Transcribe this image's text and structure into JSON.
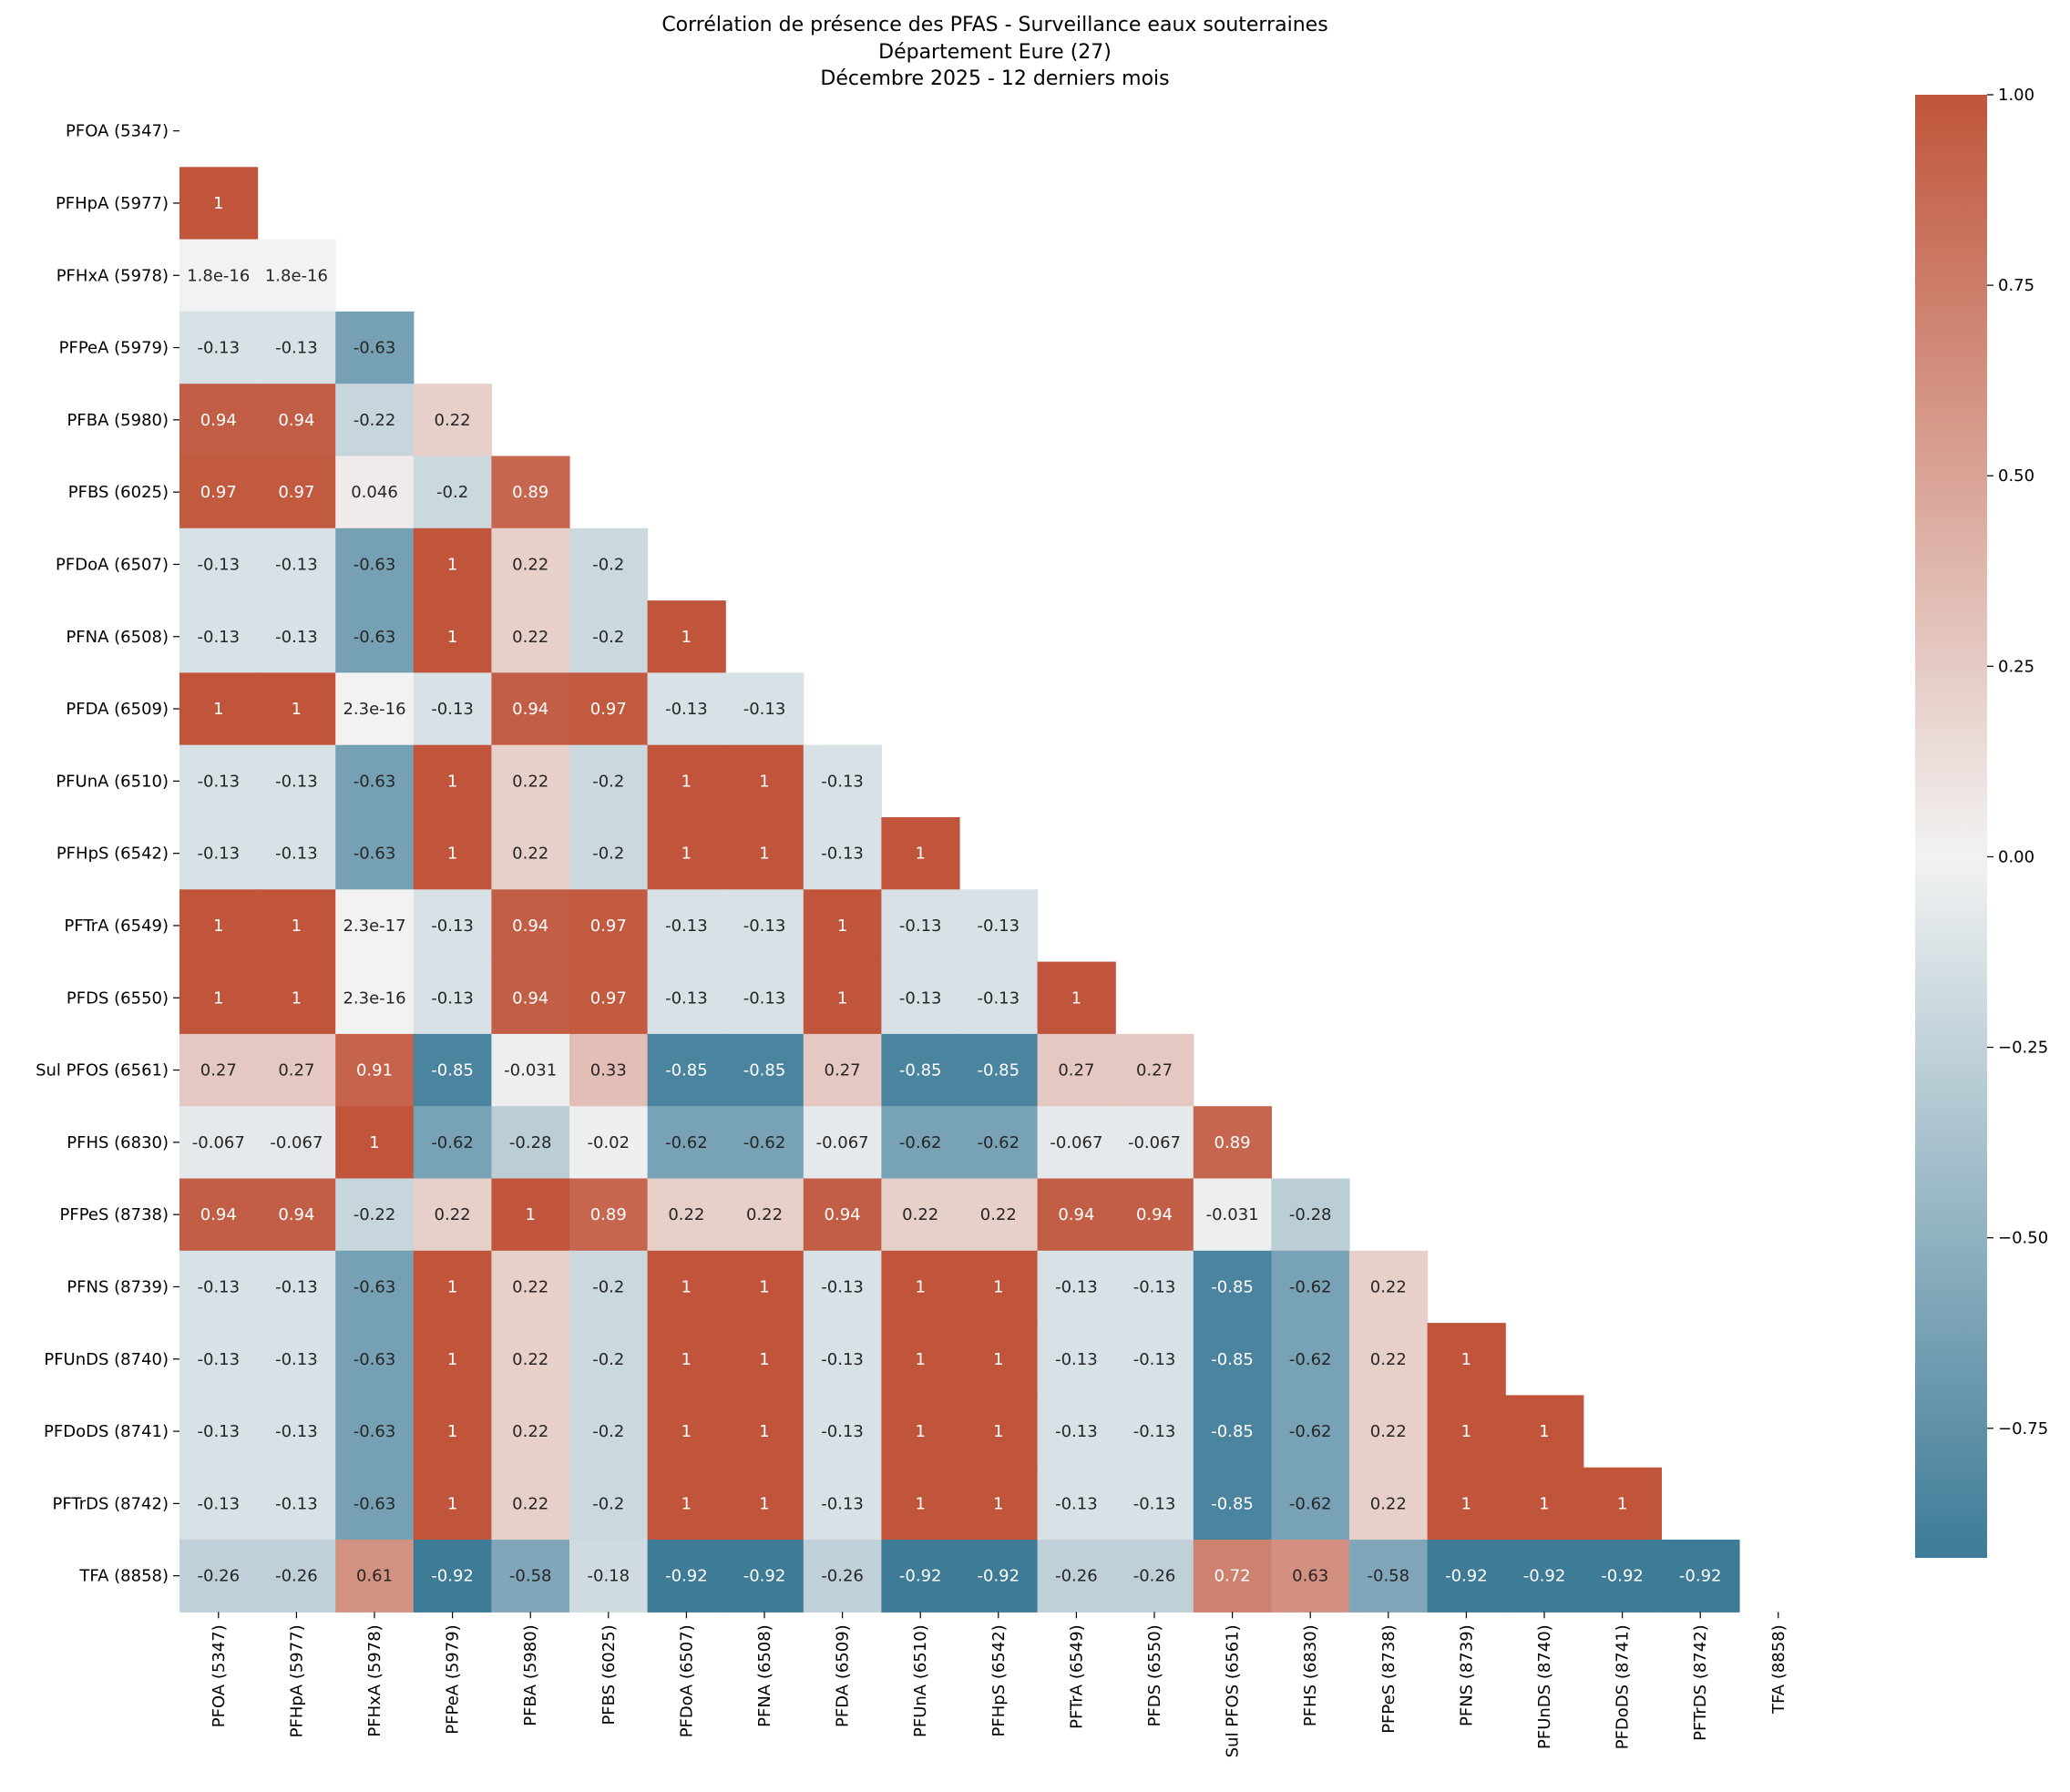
{
  "chart_data": {
    "type": "heatmap",
    "title_lines": [
      "Corrélation de présence des PFAS - Surveillance eaux souterraines",
      "Département Eure (27)",
      "Décembre 2025 - 12 derniers mois"
    ],
    "labels": [
      "PFOA (5347)",
      "PFHpA (5977)",
      "PFHxA (5978)",
      "PFPeA (5979)",
      "PFBA (5980)",
      "PFBS (6025)",
      "PFDoA (6507)",
      "PFNA (6508)",
      "PFDA (6509)",
      "PFUnA (6510)",
      "PFHpS (6542)",
      "PFTrA (6549)",
      "PFDS (6550)",
      "Sul PFOS (6561)",
      "PFHS (6830)",
      "PFPeS (8738)",
      "PFNS (8739)",
      "PFUnDS (8740)",
      "PFDoDS (8741)",
      "PFTrDS (8742)",
      "TFA (8858)"
    ],
    "lower_triangle": [
      [],
      [
        {
          "v": 1,
          "t": "1"
        }
      ],
      [
        {
          "v": 1.8e-16,
          "t": "1.8e-16"
        },
        {
          "v": 1.8e-16,
          "t": "1.8e-16"
        }
      ],
      [
        {
          "v": -0.13,
          "t": "-0.13"
        },
        {
          "v": -0.13,
          "t": "-0.13"
        },
        {
          "v": -0.63,
          "t": "-0.63"
        }
      ],
      [
        {
          "v": 0.94,
          "t": "0.94"
        },
        {
          "v": 0.94,
          "t": "0.94"
        },
        {
          "v": -0.22,
          "t": "-0.22"
        },
        {
          "v": 0.22,
          "t": "0.22"
        }
      ],
      [
        {
          "v": 0.97,
          "t": "0.97"
        },
        {
          "v": 0.97,
          "t": "0.97"
        },
        {
          "v": 0.046,
          "t": "0.046"
        },
        {
          "v": -0.2,
          "t": "-0.2"
        },
        {
          "v": 0.89,
          "t": "0.89"
        }
      ],
      [
        {
          "v": -0.13,
          "t": "-0.13"
        },
        {
          "v": -0.13,
          "t": "-0.13"
        },
        {
          "v": -0.63,
          "t": "-0.63"
        },
        {
          "v": 1,
          "t": "1"
        },
        {
          "v": 0.22,
          "t": "0.22"
        },
        {
          "v": -0.2,
          "t": "-0.2"
        }
      ],
      [
        {
          "v": -0.13,
          "t": "-0.13"
        },
        {
          "v": -0.13,
          "t": "-0.13"
        },
        {
          "v": -0.63,
          "t": "-0.63"
        },
        {
          "v": 1,
          "t": "1"
        },
        {
          "v": 0.22,
          "t": "0.22"
        },
        {
          "v": -0.2,
          "t": "-0.2"
        },
        {
          "v": 1,
          "t": "1"
        }
      ],
      [
        {
          "v": 1,
          "t": "1"
        },
        {
          "v": 1,
          "t": "1"
        },
        {
          "v": 2.3e-16,
          "t": "2.3e-16"
        },
        {
          "v": -0.13,
          "t": "-0.13"
        },
        {
          "v": 0.94,
          "t": "0.94"
        },
        {
          "v": 0.97,
          "t": "0.97"
        },
        {
          "v": -0.13,
          "t": "-0.13"
        },
        {
          "v": -0.13,
          "t": "-0.13"
        }
      ],
      [
        {
          "v": -0.13,
          "t": "-0.13"
        },
        {
          "v": -0.13,
          "t": "-0.13"
        },
        {
          "v": -0.63,
          "t": "-0.63"
        },
        {
          "v": 1,
          "t": "1"
        },
        {
          "v": 0.22,
          "t": "0.22"
        },
        {
          "v": -0.2,
          "t": "-0.2"
        },
        {
          "v": 1,
          "t": "1"
        },
        {
          "v": 1,
          "t": "1"
        },
        {
          "v": -0.13,
          "t": "-0.13"
        }
      ],
      [
        {
          "v": -0.13,
          "t": "-0.13"
        },
        {
          "v": -0.13,
          "t": "-0.13"
        },
        {
          "v": -0.63,
          "t": "-0.63"
        },
        {
          "v": 1,
          "t": "1"
        },
        {
          "v": 0.22,
          "t": "0.22"
        },
        {
          "v": -0.2,
          "t": "-0.2"
        },
        {
          "v": 1,
          "t": "1"
        },
        {
          "v": 1,
          "t": "1"
        },
        {
          "v": -0.13,
          "t": "-0.13"
        },
        {
          "v": 1,
          "t": "1"
        }
      ],
      [
        {
          "v": 1,
          "t": "1"
        },
        {
          "v": 1,
          "t": "1"
        },
        {
          "v": 2.3e-17,
          "t": "2.3e-17"
        },
        {
          "v": -0.13,
          "t": "-0.13"
        },
        {
          "v": 0.94,
          "t": "0.94"
        },
        {
          "v": 0.97,
          "t": "0.97"
        },
        {
          "v": -0.13,
          "t": "-0.13"
        },
        {
          "v": -0.13,
          "t": "-0.13"
        },
        {
          "v": 1,
          "t": "1"
        },
        {
          "v": -0.13,
          "t": "-0.13"
        },
        {
          "v": -0.13,
          "t": "-0.13"
        }
      ],
      [
        {
          "v": 1,
          "t": "1"
        },
        {
          "v": 1,
          "t": "1"
        },
        {
          "v": 2.3e-16,
          "t": "2.3e-16"
        },
        {
          "v": -0.13,
          "t": "-0.13"
        },
        {
          "v": 0.94,
          "t": "0.94"
        },
        {
          "v": 0.97,
          "t": "0.97"
        },
        {
          "v": -0.13,
          "t": "-0.13"
        },
        {
          "v": -0.13,
          "t": "-0.13"
        },
        {
          "v": 1,
          "t": "1"
        },
        {
          "v": -0.13,
          "t": "-0.13"
        },
        {
          "v": -0.13,
          "t": "-0.13"
        },
        {
          "v": 1,
          "t": "1"
        }
      ],
      [
        {
          "v": 0.27,
          "t": "0.27"
        },
        {
          "v": 0.27,
          "t": "0.27"
        },
        {
          "v": 0.91,
          "t": "0.91"
        },
        {
          "v": -0.85,
          "t": "-0.85"
        },
        {
          "v": -0.031,
          "t": "-0.031"
        },
        {
          "v": 0.33,
          "t": "0.33"
        },
        {
          "v": -0.85,
          "t": "-0.85"
        },
        {
          "v": -0.85,
          "t": "-0.85"
        },
        {
          "v": 0.27,
          "t": "0.27"
        },
        {
          "v": -0.85,
          "t": "-0.85"
        },
        {
          "v": -0.85,
          "t": "-0.85"
        },
        {
          "v": 0.27,
          "t": "0.27"
        },
        {
          "v": 0.27,
          "t": "0.27"
        }
      ],
      [
        {
          "v": -0.067,
          "t": "-0.067"
        },
        {
          "v": -0.067,
          "t": "-0.067"
        },
        {
          "v": 1,
          "t": "1"
        },
        {
          "v": -0.62,
          "t": "-0.62"
        },
        {
          "v": -0.28,
          "t": "-0.28"
        },
        {
          "v": -0.02,
          "t": "-0.02"
        },
        {
          "v": -0.62,
          "t": "-0.62"
        },
        {
          "v": -0.62,
          "t": "-0.62"
        },
        {
          "v": -0.067,
          "t": "-0.067"
        },
        {
          "v": -0.62,
          "t": "-0.62"
        },
        {
          "v": -0.62,
          "t": "-0.62"
        },
        {
          "v": -0.067,
          "t": "-0.067"
        },
        {
          "v": -0.067,
          "t": "-0.067"
        },
        {
          "v": 0.89,
          "t": "0.89"
        }
      ],
      [
        {
          "v": 0.94,
          "t": "0.94"
        },
        {
          "v": 0.94,
          "t": "0.94"
        },
        {
          "v": -0.22,
          "t": "-0.22"
        },
        {
          "v": 0.22,
          "t": "0.22"
        },
        {
          "v": 1,
          "t": "1"
        },
        {
          "v": 0.89,
          "t": "0.89"
        },
        {
          "v": 0.22,
          "t": "0.22"
        },
        {
          "v": 0.22,
          "t": "0.22"
        },
        {
          "v": 0.94,
          "t": "0.94"
        },
        {
          "v": 0.22,
          "t": "0.22"
        },
        {
          "v": 0.22,
          "t": "0.22"
        },
        {
          "v": 0.94,
          "t": "0.94"
        },
        {
          "v": 0.94,
          "t": "0.94"
        },
        {
          "v": -0.031,
          "t": "-0.031"
        },
        {
          "v": -0.28,
          "t": "-0.28"
        }
      ],
      [
        {
          "v": -0.13,
          "t": "-0.13"
        },
        {
          "v": -0.13,
          "t": "-0.13"
        },
        {
          "v": -0.63,
          "t": "-0.63"
        },
        {
          "v": 1,
          "t": "1"
        },
        {
          "v": 0.22,
          "t": "0.22"
        },
        {
          "v": -0.2,
          "t": "-0.2"
        },
        {
          "v": 1,
          "t": "1"
        },
        {
          "v": 1,
          "t": "1"
        },
        {
          "v": -0.13,
          "t": "-0.13"
        },
        {
          "v": 1,
          "t": "1"
        },
        {
          "v": 1,
          "t": "1"
        },
        {
          "v": -0.13,
          "t": "-0.13"
        },
        {
          "v": -0.13,
          "t": "-0.13"
        },
        {
          "v": -0.85,
          "t": "-0.85"
        },
        {
          "v": -0.62,
          "t": "-0.62"
        },
        {
          "v": 0.22,
          "t": "0.22"
        }
      ],
      [
        {
          "v": -0.13,
          "t": "-0.13"
        },
        {
          "v": -0.13,
          "t": "-0.13"
        },
        {
          "v": -0.63,
          "t": "-0.63"
        },
        {
          "v": 1,
          "t": "1"
        },
        {
          "v": 0.22,
          "t": "0.22"
        },
        {
          "v": -0.2,
          "t": "-0.2"
        },
        {
          "v": 1,
          "t": "1"
        },
        {
          "v": 1,
          "t": "1"
        },
        {
          "v": -0.13,
          "t": "-0.13"
        },
        {
          "v": 1,
          "t": "1"
        },
        {
          "v": 1,
          "t": "1"
        },
        {
          "v": -0.13,
          "t": "-0.13"
        },
        {
          "v": -0.13,
          "t": "-0.13"
        },
        {
          "v": -0.85,
          "t": "-0.85"
        },
        {
          "v": -0.62,
          "t": "-0.62"
        },
        {
          "v": 0.22,
          "t": "0.22"
        },
        {
          "v": 1,
          "t": "1"
        }
      ],
      [
        {
          "v": -0.13,
          "t": "-0.13"
        },
        {
          "v": -0.13,
          "t": "-0.13"
        },
        {
          "v": -0.63,
          "t": "-0.63"
        },
        {
          "v": 1,
          "t": "1"
        },
        {
          "v": 0.22,
          "t": "0.22"
        },
        {
          "v": -0.2,
          "t": "-0.2"
        },
        {
          "v": 1,
          "t": "1"
        },
        {
          "v": 1,
          "t": "1"
        },
        {
          "v": -0.13,
          "t": "-0.13"
        },
        {
          "v": 1,
          "t": "1"
        },
        {
          "v": 1,
          "t": "1"
        },
        {
          "v": -0.13,
          "t": "-0.13"
        },
        {
          "v": -0.13,
          "t": "-0.13"
        },
        {
          "v": -0.85,
          "t": "-0.85"
        },
        {
          "v": -0.62,
          "t": "-0.62"
        },
        {
          "v": 0.22,
          "t": "0.22"
        },
        {
          "v": 1,
          "t": "1"
        },
        {
          "v": 1,
          "t": "1"
        }
      ],
      [
        {
          "v": -0.13,
          "t": "-0.13"
        },
        {
          "v": -0.13,
          "t": "-0.13"
        },
        {
          "v": -0.63,
          "t": "-0.63"
        },
        {
          "v": 1,
          "t": "1"
        },
        {
          "v": 0.22,
          "t": "0.22"
        },
        {
          "v": -0.2,
          "t": "-0.2"
        },
        {
          "v": 1,
          "t": "1"
        },
        {
          "v": 1,
          "t": "1"
        },
        {
          "v": -0.13,
          "t": "-0.13"
        },
        {
          "v": 1,
          "t": "1"
        },
        {
          "v": 1,
          "t": "1"
        },
        {
          "v": -0.13,
          "t": "-0.13"
        },
        {
          "v": -0.13,
          "t": "-0.13"
        },
        {
          "v": -0.85,
          "t": "-0.85"
        },
        {
          "v": -0.62,
          "t": "-0.62"
        },
        {
          "v": 0.22,
          "t": "0.22"
        },
        {
          "v": 1,
          "t": "1"
        },
        {
          "v": 1,
          "t": "1"
        },
        {
          "v": 1,
          "t": "1"
        }
      ],
      [
        {
          "v": -0.26,
          "t": "-0.26"
        },
        {
          "v": -0.26,
          "t": "-0.26"
        },
        {
          "v": 0.61,
          "t": "0.61"
        },
        {
          "v": -0.92,
          "t": "-0.92"
        },
        {
          "v": -0.58,
          "t": "-0.58"
        },
        {
          "v": -0.18,
          "t": "-0.18"
        },
        {
          "v": -0.92,
          "t": "-0.92"
        },
        {
          "v": -0.92,
          "t": "-0.92"
        },
        {
          "v": -0.26,
          "t": "-0.26"
        },
        {
          "v": -0.92,
          "t": "-0.92"
        },
        {
          "v": -0.92,
          "t": "-0.92"
        },
        {
          "v": -0.26,
          "t": "-0.26"
        },
        {
          "v": -0.26,
          "t": "-0.26"
        },
        {
          "v": 0.72,
          "t": "0.72"
        },
        {
          "v": 0.63,
          "t": "0.63"
        },
        {
          "v": -0.58,
          "t": "-0.58"
        },
        {
          "v": -0.92,
          "t": "-0.92"
        },
        {
          "v": -0.92,
          "t": "-0.92"
        },
        {
          "v": -0.92,
          "t": "-0.92"
        },
        {
          "v": -0.92,
          "t": "-0.92"
        }
      ]
    ],
    "colorbar": {
      "vmin": -0.92,
      "vmax": 1.0,
      "ticks": [
        1.0,
        0.75,
        0.5,
        0.25,
        0.0,
        -0.25,
        -0.5,
        -0.75
      ],
      "tick_labels": [
        "1.00",
        "0.75",
        "0.50",
        "0.25",
        "0.00",
        "−0.25",
        "−0.50",
        "−0.75"
      ]
    },
    "colormap": {
      "negative": "#3d7b97",
      "center": "#f2f2f2",
      "positive": "#c0553b"
    }
  }
}
